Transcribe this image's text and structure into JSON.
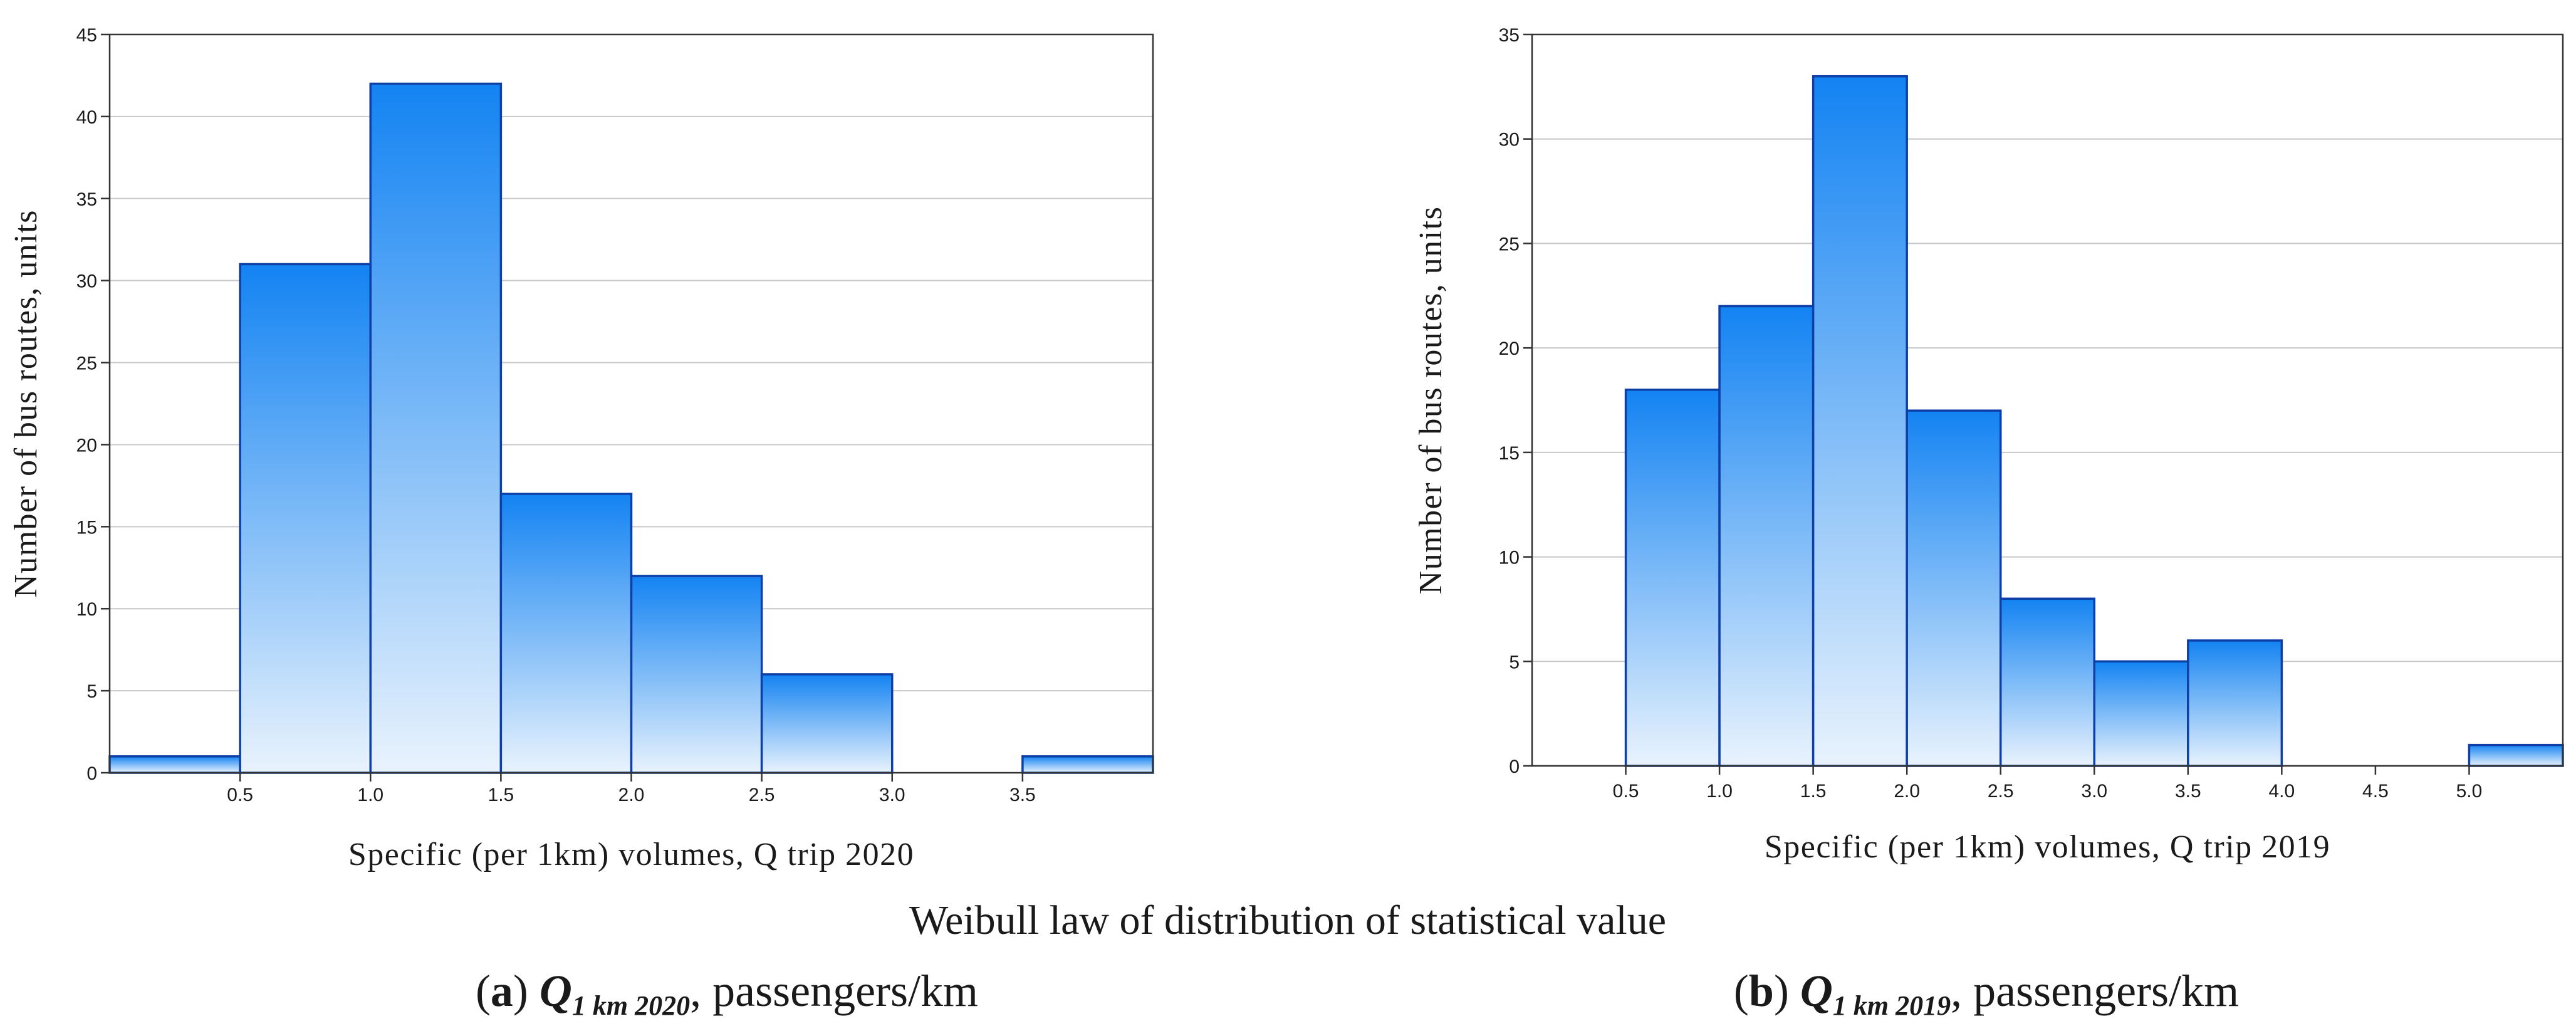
{
  "figure": {
    "title": "Weibull law of distribution of statistical value",
    "captions": [
      {
        "letter": "a",
        "q": "Q",
        "subscript": "1 km 2020",
        "unit": ", passengers/km"
      },
      {
        "letter": "b",
        "q": "Q",
        "subscript": "1 km 2019",
        "unit": ", passengers/km"
      }
    ]
  },
  "chart_data": [
    {
      "type": "bar",
      "ylabel": "Number of bus routes, units",
      "xlabel": "Specific (per 1km) volumes, Q trip 2020",
      "bins": [
        {
          "x0": 0.0,
          "x1": 0.5,
          "value": 1
        },
        {
          "x0": 0.5,
          "x1": 1.0,
          "value": 31
        },
        {
          "x0": 1.0,
          "x1": 1.5,
          "value": 42
        },
        {
          "x0": 1.5,
          "x1": 2.0,
          "value": 17
        },
        {
          "x0": 2.0,
          "x1": 2.5,
          "value": 12
        },
        {
          "x0": 2.5,
          "x1": 3.0,
          "value": 6
        },
        {
          "x0": 3.0,
          "x1": 3.5,
          "value": 0
        },
        {
          "x0": 3.5,
          "x1": 4.0,
          "value": 1
        }
      ],
      "xlim": [
        0,
        4.0
      ],
      "ylim": [
        0,
        45
      ],
      "xticks": [
        0.5,
        1.0,
        1.5,
        2.0,
        2.5,
        3.0,
        3.5
      ],
      "xtick_labels": [
        "0.5",
        "1.0",
        "1.5",
        "2.0",
        "2.5",
        "3.0",
        "3.5"
      ],
      "yticks": [
        0,
        5,
        10,
        15,
        20,
        25,
        30,
        35,
        40,
        45
      ],
      "grid": true,
      "colors": {
        "bar_top": "#1383f2",
        "bar_bottom": "#e9f3fd",
        "bar_edge": "#0d3fa6",
        "grid": "#c8c8c8",
        "frame": "#333333"
      }
    },
    {
      "type": "bar",
      "ylabel": "Number of bus routes, units",
      "xlabel": "Specific (per 1km) volumes, Q trip 2019",
      "bins": [
        {
          "x0": 0.0,
          "x1": 0.5,
          "value": 0
        },
        {
          "x0": 0.5,
          "x1": 1.0,
          "value": 18
        },
        {
          "x0": 1.0,
          "x1": 1.5,
          "value": 22
        },
        {
          "x0": 1.5,
          "x1": 2.0,
          "value": 33
        },
        {
          "x0": 2.0,
          "x1": 2.5,
          "value": 17
        },
        {
          "x0": 2.5,
          "x1": 3.0,
          "value": 8
        },
        {
          "x0": 3.0,
          "x1": 3.5,
          "value": 5
        },
        {
          "x0": 3.5,
          "x1": 4.0,
          "value": 6
        },
        {
          "x0": 4.0,
          "x1": 4.5,
          "value": 0
        },
        {
          "x0": 4.5,
          "x1": 5.0,
          "value": 0
        },
        {
          "x0": 5.0,
          "x1": 5.5,
          "value": 1
        }
      ],
      "xlim": [
        0,
        5.5
      ],
      "ylim": [
        0,
        35
      ],
      "xticks": [
        0.5,
        1.0,
        1.5,
        2.0,
        2.5,
        3.0,
        3.5,
        4.0,
        4.5,
        5.0
      ],
      "xtick_labels": [
        "0.5",
        "1.0",
        "1.5",
        "2.0",
        "2.5",
        "3.0",
        "3.5",
        "4.0",
        "4.5",
        "5.0"
      ],
      "yticks": [
        0,
        5,
        10,
        15,
        20,
        25,
        30,
        35
      ],
      "grid": true,
      "colors": {
        "bar_top": "#1383f2",
        "bar_bottom": "#e9f3fd",
        "bar_edge": "#0d3fa6",
        "grid": "#c8c8c8",
        "frame": "#333333"
      }
    }
  ]
}
